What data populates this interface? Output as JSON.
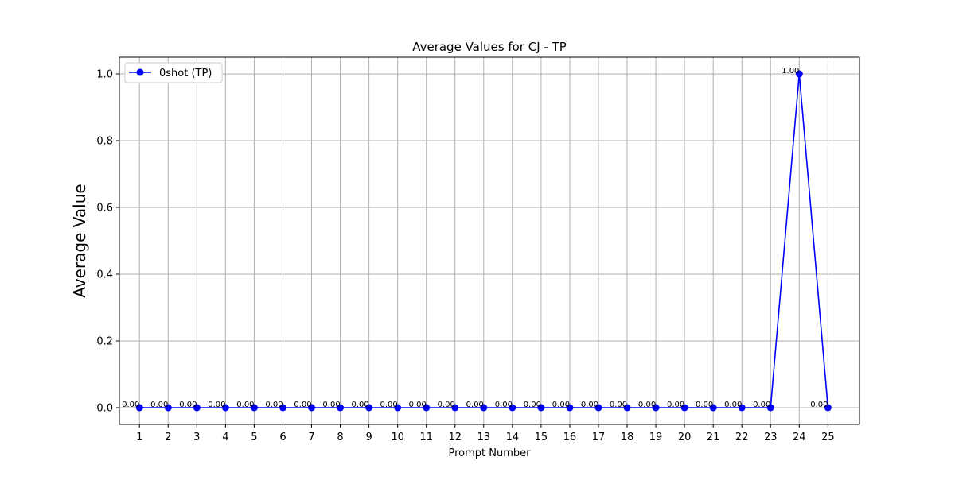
{
  "chart_data": {
    "type": "line",
    "title": "Average Values for CJ - TP",
    "xlabel": "Prompt Number",
    "ylabel": "Average Value",
    "x": [
      1,
      2,
      3,
      4,
      5,
      6,
      7,
      8,
      9,
      10,
      11,
      12,
      13,
      14,
      15,
      16,
      17,
      18,
      19,
      20,
      21,
      22,
      23,
      24,
      25
    ],
    "xlim": [
      0.3,
      26.1
    ],
    "ylim": [
      -0.05,
      1.05
    ],
    "yticks": [
      0.0,
      0.2,
      0.4,
      0.6,
      0.8,
      1.0
    ],
    "grid": true,
    "legend_position": "upper left",
    "series": [
      {
        "name": "0shot (TP)",
        "color": "#0000ff",
        "values": [
          0,
          0,
          0,
          0,
          0,
          0,
          0,
          0,
          0,
          0,
          0,
          0,
          0,
          0,
          0,
          0,
          0,
          0,
          0,
          0,
          0,
          0,
          0,
          1,
          0
        ]
      }
    ],
    "data_label_format": "2 decimals"
  },
  "colors": {
    "grid": "#b0b0b0",
    "axis": "#000000",
    "series": "#0000ff"
  }
}
